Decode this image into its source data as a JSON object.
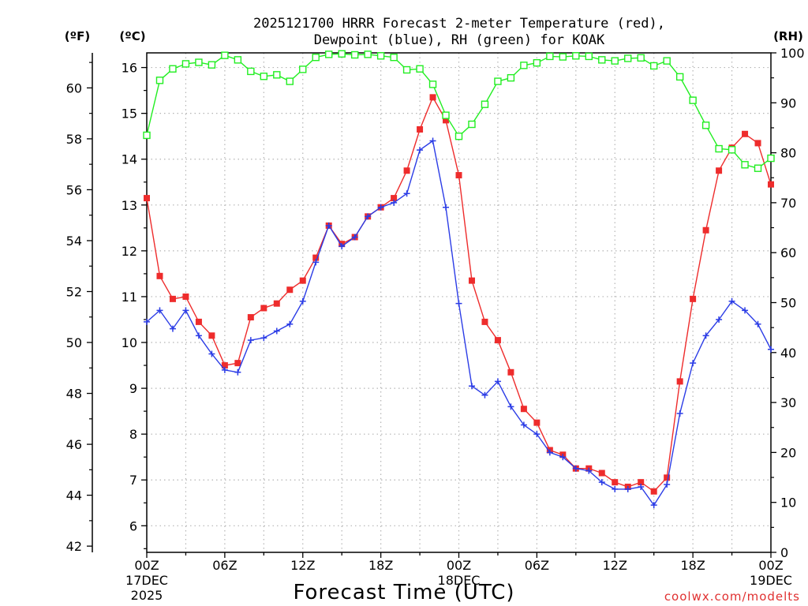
{
  "chart_data": {
    "type": "line",
    "title_line1": "2025121700 HRRR Forecast 2-meter Temperature (red),",
    "title_line2": "Dewpoint (blue), RH (green) for KOAK",
    "xlabel": "Forecast Time (UTC)",
    "credit": "coolwx.com/modelts",
    "unit_f": "(ºF)",
    "unit_c": "(ºC)",
    "unit_rh": "(RH)",
    "x": [
      0,
      1,
      2,
      3,
      4,
      5,
      6,
      7,
      8,
      9,
      10,
      11,
      12,
      13,
      14,
      15,
      16,
      17,
      18,
      19,
      20,
      21,
      22,
      23,
      24,
      25,
      26,
      27,
      28,
      29,
      30,
      31,
      32,
      33,
      34,
      35,
      36,
      37,
      38,
      39,
      40,
      41,
      42,
      43,
      44,
      45,
      46,
      47,
      48
    ],
    "xlim": [
      0,
      48
    ],
    "x_ticks": [
      {
        "x": 0,
        "label": "00Z",
        "sub1": "17DEC",
        "sub2": "2025"
      },
      {
        "x": 6,
        "label": "06Z"
      },
      {
        "x": 12,
        "label": "12Z"
      },
      {
        "x": 18,
        "label": "18Z"
      },
      {
        "x": 24,
        "label": "00Z",
        "sub1": "18DEC"
      },
      {
        "x": 30,
        "label": "06Z"
      },
      {
        "x": 36,
        "label": "12Z"
      },
      {
        "x": 42,
        "label": "18Z"
      },
      {
        "x": 48,
        "label": "00Z",
        "sub1": "19DEC"
      }
    ],
    "c_lim": [
      5.42,
      16.32
    ],
    "c_ticks": [
      6,
      7,
      8,
      9,
      10,
      11,
      12,
      13,
      14,
      15,
      16
    ],
    "f_ticks": [
      42,
      44,
      46,
      48,
      50,
      52,
      54,
      56,
      58,
      60
    ],
    "rh_lim": [
      0,
      100
    ],
    "rh_ticks": [
      0,
      10,
      20,
      30,
      40,
      50,
      60,
      70,
      80,
      90,
      100
    ],
    "series": [
      {
        "name": "Temperature",
        "unit": "C",
        "color": "#ee2c2c",
        "marker": "filled-square",
        "values": [
          13.15,
          11.45,
          10.95,
          11.0,
          10.45,
          10.15,
          9.5,
          9.55,
          10.55,
          10.75,
          10.85,
          11.15,
          11.35,
          11.85,
          12.55,
          12.15,
          12.3,
          12.75,
          12.95,
          13.15,
          13.75,
          14.65,
          15.35,
          14.85,
          13.65,
          11.35,
          10.45,
          10.05,
          9.35,
          8.55,
          8.25,
          7.65,
          7.55,
          7.25,
          7.25,
          7.15,
          6.95,
          6.85,
          6.95,
          6.75,
          7.05,
          9.15,
          10.95,
          12.45,
          13.75,
          14.25,
          14.55,
          14.35,
          13.45
        ]
      },
      {
        "name": "Dewpoint",
        "unit": "C",
        "color": "#2b3ce6",
        "marker": "plus",
        "values": [
          10.45,
          10.7,
          10.3,
          10.7,
          10.15,
          9.75,
          9.4,
          9.35,
          10.05,
          10.1,
          10.25,
          10.4,
          10.9,
          11.75,
          12.55,
          12.1,
          12.3,
          12.75,
          12.95,
          13.05,
          13.25,
          14.2,
          14.4,
          12.95,
          10.85,
          9.05,
          8.85,
          9.15,
          8.6,
          8.2,
          8.0,
          7.6,
          7.5,
          7.25,
          7.2,
          6.95,
          6.8,
          6.8,
          6.85,
          6.45,
          6.9,
          8.45,
          9.55,
          10.15,
          10.5,
          10.9,
          10.7,
          10.4,
          9.85
        ]
      },
      {
        "name": "RH",
        "unit": "%",
        "color": "#22ee22",
        "marker": "open-square",
        "values": [
          83.5,
          94.5,
          96.8,
          97.8,
          98.1,
          97.6,
          99.5,
          98.6,
          96.3,
          95.3,
          95.6,
          94.3,
          96.7,
          99.1,
          99.7,
          99.8,
          99.6,
          99.7,
          99.4,
          99.1,
          96.6,
          96.8,
          93.7,
          87.5,
          83.3,
          85.7,
          89.7,
          94.3,
          95.0,
          97.5,
          98.0,
          99.3,
          99.2,
          99.4,
          99.3,
          98.6,
          98.4,
          98.9,
          99.0,
          97.4,
          98.4,
          95.2,
          90.5,
          85.5,
          80.8,
          80.6,
          77.6,
          76.9,
          78.9
        ]
      }
    ]
  }
}
